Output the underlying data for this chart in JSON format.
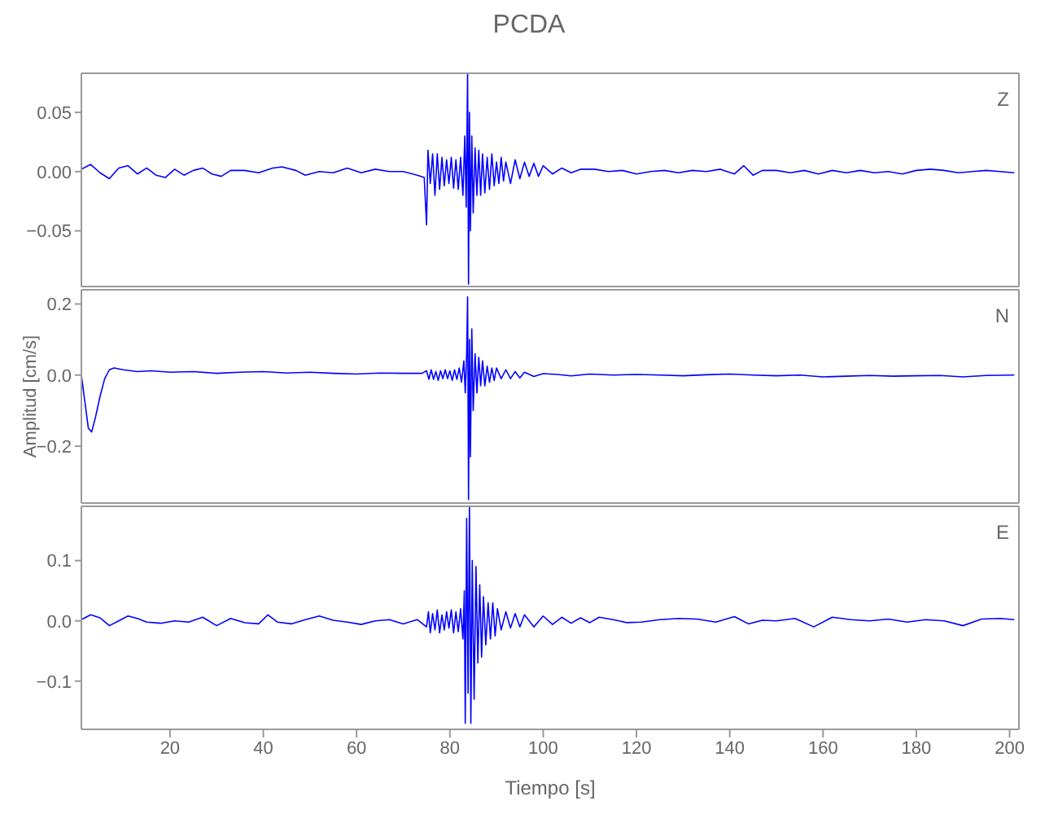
{
  "chart_data": [
    {
      "type": "line",
      "title": "PCDA",
      "annotations": [
        "Z"
      ],
      "xlim": [
        1,
        202
      ],
      "xticks": [
        20,
        40,
        60,
        80,
        100,
        120,
        140,
        160,
        180,
        200
      ],
      "ylim": [
        -0.097,
        0.083
      ],
      "yticks": [
        {
          "value": -0.05,
          "label": "−0.05"
        },
        {
          "value": 0,
          "label": "0.00"
        },
        {
          "value": 0.05,
          "label": "0.05"
        }
      ],
      "tick_labels": "y",
      "marker": "none",
      "series": [
        {
          "color": "#0000ff",
          "x": [
            1,
            3,
            5,
            7,
            9,
            11,
            13,
            15,
            17,
            19,
            21,
            23,
            25,
            27,
            29,
            31,
            33,
            36,
            39,
            42,
            44,
            47,
            49,
            52,
            55,
            58,
            61,
            64,
            67,
            70,
            73,
            74.5,
            75,
            75.3,
            75.8,
            76.3,
            76.8,
            77.3,
            77.8,
            78.3,
            78.8,
            79.3,
            79.8,
            80.3,
            80.8,
            81.3,
            81.8,
            82.3,
            82.8,
            83.2,
            83.5,
            83.8,
            84,
            84.2,
            84.4,
            84.7,
            85,
            85.4,
            85.8,
            86.2,
            86.6,
            87,
            87.5,
            88,
            88.5,
            89,
            89.5,
            90,
            90.5,
            91,
            91.5,
            92,
            93,
            94,
            95,
            96,
            97,
            98,
            99,
            100,
            102,
            104,
            106,
            108,
            111,
            114,
            117,
            120,
            123,
            126,
            129,
            132,
            135,
            138,
            141,
            143,
            145,
            147,
            150,
            153,
            156,
            159,
            162,
            165,
            168,
            171,
            174,
            177,
            180,
            183,
            186,
            189,
            192,
            195,
            198,
            201
          ],
          "values": [
            0.002,
            0.006,
            -0.001,
            -0.006,
            0.003,
            0.005,
            -0.002,
            0.003,
            -0.003,
            -0.005,
            0.002,
            -0.003,
            0.001,
            0.003,
            -0.002,
            -0.004,
            0.001,
            0.001,
            -0.001,
            0.003,
            0.004,
            0.001,
            -0.003,
            0,
            -0.001,
            0.003,
            -0.001,
            0.002,
            0,
            0,
            -0.003,
            -0.005,
            -0.045,
            0.018,
            -0.01,
            0.015,
            -0.02,
            0.015,
            -0.015,
            0.012,
            -0.012,
            0.01,
            -0.01,
            0.012,
            -0.014,
            0.01,
            -0.015,
            0.012,
            -0.02,
            0.03,
            -0.03,
            0.083,
            -0.095,
            0.05,
            -0.05,
            0.03,
            -0.035,
            0.02,
            -0.02,
            0.018,
            -0.02,
            0.015,
            -0.018,
            0.012,
            -0.015,
            0.015,
            -0.012,
            0.008,
            -0.01,
            0.012,
            -0.008,
            0.008,
            -0.01,
            0.01,
            -0.006,
            0.008,
            -0.004,
            0.007,
            -0.004,
            0.005,
            -0.002,
            0.003,
            -0.001,
            0.002,
            0.002,
            0,
            0.001,
            -0.002,
            0,
            0.001,
            -0.001,
            0.001,
            0,
            0.002,
            -0.002,
            0.005,
            -0.003,
            0.001,
            0.001,
            -0.001,
            0.001,
            -0.002,
            0.001,
            -0.001,
            0.001,
            -0.001,
            0,
            -0.002,
            0.001,
            0.002,
            0.001,
            -0.001,
            0,
            0.001,
            0,
            -0.001
          ]
        }
      ]
    },
    {
      "type": "line",
      "ylabel": "Amplitud [cm/s]",
      "annotations": [
        "N"
      ],
      "xlim": [
        1,
        202
      ],
      "xticks": [
        20,
        40,
        60,
        80,
        100,
        120,
        140,
        160,
        180,
        200
      ],
      "ylim": [
        -0.36,
        0.24
      ],
      "yticks": [
        -0.2,
        {
          "value": 0,
          "label": "0.0"
        },
        0.2
      ],
      "tick_labels": "y",
      "marker": "none",
      "series": [
        {
          "color": "#0000ff",
          "x": [
            1,
            1.8,
            2.5,
            3.2,
            4,
            5,
            6,
            7,
            8,
            10,
            13,
            16,
            20,
            25,
            30,
            35,
            40,
            45,
            50,
            55,
            60,
            65,
            70,
            74,
            75,
            75.5,
            76,
            76.5,
            77,
            77.5,
            78,
            78.5,
            79,
            79.5,
            80,
            80.5,
            81,
            81.5,
            82,
            82.5,
            83,
            83.3,
            83.6,
            83.8,
            84,
            84.2,
            84.4,
            84.7,
            85,
            85.4,
            85.8,
            86.2,
            86.6,
            87,
            87.5,
            88,
            88.5,
            89,
            89.5,
            90,
            91,
            92,
            93,
            94,
            95,
            96,
            98,
            100,
            103,
            106,
            110,
            115,
            120,
            125,
            130,
            135,
            140,
            145,
            150,
            155,
            160,
            165,
            170,
            175,
            180,
            185,
            190,
            195,
            201
          ],
          "values": [
            0,
            -0.08,
            -0.15,
            -0.16,
            -0.12,
            -0.06,
            -0.01,
            0.015,
            0.02,
            0.015,
            0.01,
            0.012,
            0.008,
            0.01,
            0.005,
            0.008,
            0.01,
            0.006,
            0.008,
            0.005,
            0.003,
            0.006,
            0.005,
            0.005,
            0.012,
            -0.012,
            0.015,
            -0.012,
            0.01,
            -0.015,
            0.012,
            -0.01,
            0.015,
            -0.01,
            0.012,
            -0.015,
            0.015,
            -0.012,
            0.02,
            -0.02,
            0.04,
            -0.05,
            0.06,
            0.22,
            -0.35,
            0.1,
            -0.23,
            0.13,
            -0.1,
            0.06,
            -0.05,
            0.05,
            -0.03,
            0.04,
            -0.03,
            0.025,
            -0.02,
            0.02,
            -0.015,
            0.02,
            -0.01,
            0.015,
            -0.01,
            0.01,
            -0.008,
            0.008,
            -0.004,
            0.004,
            0.002,
            -0.002,
            0.003,
            0,
            0.002,
            0,
            -0.002,
            0.001,
            0.003,
            0,
            -0.002,
            0,
            -0.005,
            -0.003,
            -0.001,
            -0.003,
            -0.002,
            -0.001,
            -0.005,
            -0.001,
            0
          ]
        }
      ]
    },
    {
      "type": "line",
      "xlabel": "Tiempo [s]",
      "annotations": [
        "E"
      ],
      "xlim": [
        1,
        202
      ],
      "xticks": [
        20,
        40,
        60,
        80,
        100,
        120,
        140,
        160,
        180,
        200
      ],
      "ylim": [
        -0.18,
        0.19
      ],
      "yticks": [
        -0.1,
        {
          "value": 0,
          "label": "0.0"
        },
        0.1
      ],
      "marker": "none",
      "series": [
        {
          "color": "#0000ff",
          "x": [
            1,
            3,
            5,
            7,
            9,
            11,
            13,
            15,
            18,
            21,
            24,
            27,
            30,
            33,
            36,
            39,
            41,
            43,
            46,
            49,
            52,
            55,
            58,
            61,
            64,
            67,
            70,
            73,
            75,
            75.4,
            75.8,
            76.3,
            76.8,
            77.3,
            77.8,
            78.3,
            78.8,
            79.3,
            79.8,
            80.3,
            80.8,
            81.3,
            81.8,
            82.3,
            82.8,
            83.1,
            83.3,
            83.6,
            83.9,
            84.2,
            84.5,
            84.8,
            85.2,
            85.6,
            86,
            86.4,
            86.8,
            87.2,
            87.7,
            88.2,
            88.7,
            89.2,
            89.7,
            90.2,
            91,
            92,
            93,
            94,
            95,
            96,
            98,
            100,
            102,
            104,
            106,
            108,
            110,
            112,
            115,
            118,
            121,
            125,
            129,
            133,
            137,
            141,
            144,
            147,
            150,
            154,
            158,
            162,
            166,
            170,
            174,
            178,
            182,
            186,
            190,
            194,
            198,
            201
          ],
          "values": [
            0.002,
            0.01,
            0.005,
            -0.008,
            0,
            0.008,
            0.004,
            -0.002,
            -0.004,
            0,
            -0.002,
            0.006,
            -0.008,
            0.004,
            -0.003,
            -0.005,
            0.01,
            -0.002,
            -0.005,
            0.002,
            0.008,
            0.001,
            -0.002,
            -0.006,
            0,
            0.002,
            -0.005,
            0.002,
            -0.01,
            0.015,
            -0.02,
            0.012,
            -0.015,
            0.018,
            -0.02,
            0.01,
            -0.015,
            0.015,
            -0.012,
            0.018,
            -0.02,
            0.015,
            -0.018,
            0.02,
            -0.03,
            0.05,
            -0.17,
            0.17,
            -0.12,
            0.19,
            -0.17,
            0.1,
            -0.13,
            0.09,
            -0.07,
            0.06,
            -0.06,
            0.04,
            -0.04,
            0.03,
            -0.03,
            0.03,
            -0.025,
            0.02,
            -0.015,
            0.015,
            -0.012,
            0.012,
            -0.01,
            0.01,
            -0.01,
            0.008,
            -0.006,
            0.006,
            -0.004,
            0.005,
            -0.003,
            0.006,
            0.002,
            -0.003,
            -0.002,
            0.002,
            0.004,
            0.003,
            -0.002,
            0.007,
            -0.005,
            0.001,
            0,
            0.004,
            -0.01,
            0.006,
            0.002,
            0,
            0.003,
            -0.002,
            0.002,
            0,
            -0.008,
            0.003,
            0.004,
            0.002
          ]
        }
      ]
    }
  ]
}
